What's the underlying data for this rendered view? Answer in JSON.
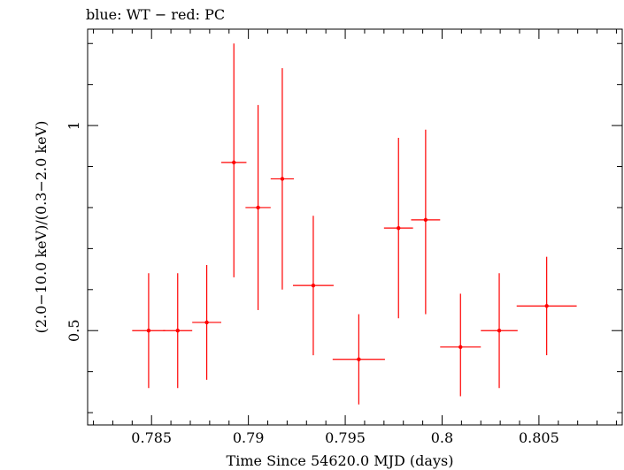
{
  "chart_data": {
    "type": "scatter",
    "title": "blue: WT − red: PC",
    "xlabel": "Time Since 54620.0 MJD (days)",
    "ylabel": "(2.0−10.0 keV)/(0.3−2.0 keV)",
    "xlim": [
      0.7817,
      0.8093
    ],
    "ylim": [
      0.27,
      1.235
    ],
    "x_ticks": [
      {
        "value": 0.785,
        "label": "0.785"
      },
      {
        "value": 0.79,
        "label": "0.79"
      },
      {
        "value": 0.795,
        "label": "0.795"
      },
      {
        "value": 0.8,
        "label": "0.8"
      },
      {
        "value": 0.805,
        "label": "0.805"
      }
    ],
    "x_minor_step": 0.001,
    "y_ticks": [
      {
        "value": 0.5,
        "label": "0.5"
      },
      {
        "value": 1.0,
        "label": "1"
      }
    ],
    "y_minor_ticks": [
      0.3,
      0.4,
      0.6,
      0.7,
      0.8,
      0.9,
      1.1,
      1.2
    ],
    "series": [
      {
        "name": "PC",
        "color": "#ff0000",
        "points": [
          {
            "x": 0.78485,
            "xerr": 0.00085,
            "y": 0.5,
            "ylo": 0.36,
            "yhi": 0.64
          },
          {
            "x": 0.78635,
            "xerr": 0.00075,
            "y": 0.5,
            "ylo": 0.36,
            "yhi": 0.64
          },
          {
            "x": 0.78785,
            "xerr": 0.00075,
            "y": 0.52,
            "ylo": 0.38,
            "yhi": 0.66
          },
          {
            "x": 0.78925,
            "xerr": 0.00065,
            "y": 0.91,
            "ylo": 0.63,
            "yhi": 1.2
          },
          {
            "x": 0.7905,
            "xerr": 0.00065,
            "y": 0.8,
            "ylo": 0.55,
            "yhi": 1.05
          },
          {
            "x": 0.79175,
            "xerr": 0.0006,
            "y": 0.87,
            "ylo": 0.6,
            "yhi": 1.14
          },
          {
            "x": 0.79335,
            "xerr": 0.00105,
            "y": 0.61,
            "ylo": 0.44,
            "yhi": 0.78
          },
          {
            "x": 0.7957,
            "xerr": 0.00135,
            "y": 0.43,
            "ylo": 0.32,
            "yhi": 0.54
          },
          {
            "x": 0.79775,
            "xerr": 0.00075,
            "y": 0.75,
            "ylo": 0.53,
            "yhi": 0.97
          },
          {
            "x": 0.79915,
            "xerr": 0.00075,
            "y": 0.77,
            "ylo": 0.54,
            "yhi": 0.99
          },
          {
            "x": 0.80095,
            "xerr": 0.00105,
            "y": 0.46,
            "ylo": 0.34,
            "yhi": 0.59
          },
          {
            "x": 0.80295,
            "xerr": 0.00095,
            "y": 0.5,
            "ylo": 0.36,
            "yhi": 0.64
          },
          {
            "x": 0.8054,
            "xerr": 0.00155,
            "y": 0.56,
            "ylo": 0.44,
            "yhi": 0.68
          }
        ]
      }
    ]
  }
}
